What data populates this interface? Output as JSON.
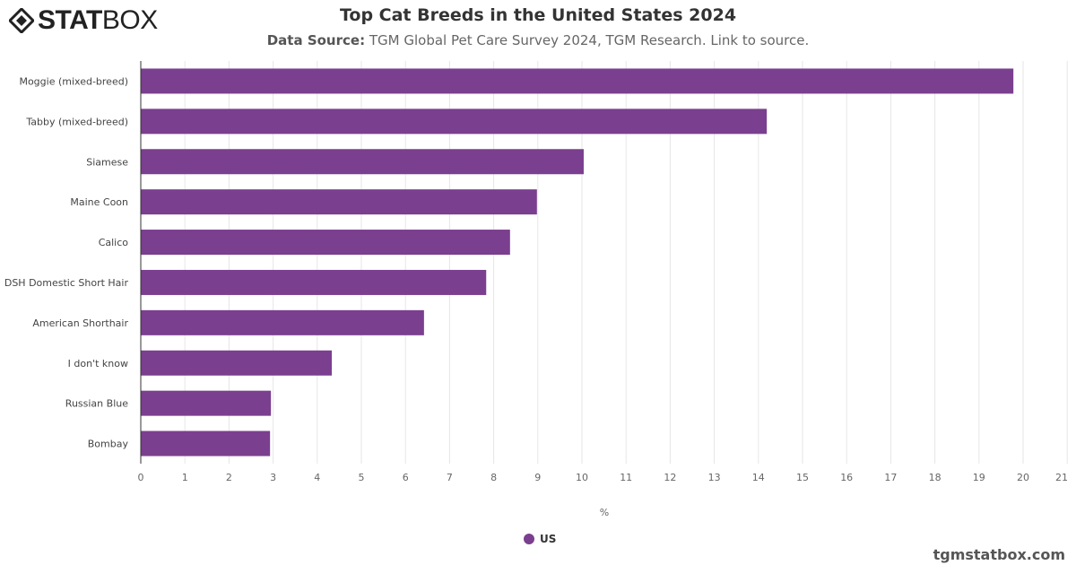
{
  "brand": {
    "logo_bold": "STAT",
    "logo_light": "BOX",
    "credit": "tgmstatbox.com"
  },
  "header": {
    "title": "Top Cat Breeds in the United States 2024",
    "source_label": "Data Source:",
    "source_text": "TGM Global Pet Care Survey 2024, TGM Research. Link to source."
  },
  "chart_data": {
    "type": "bar",
    "orientation": "horizontal",
    "title": "Top Cat Breeds in the United States 2024",
    "categories": [
      "Moggie (mixed-breed)",
      "Tabby (mixed-breed)",
      "Siamese",
      "Maine Coon",
      "Calico",
      "DSH Domestic Short Hair",
      "American Shorthair",
      "I don't know",
      "Russian Blue",
      "Bombay"
    ],
    "series": [
      {
        "name": "US",
        "color": "#7b3f8f",
        "values": [
          19.78,
          14.19,
          10.04,
          8.98,
          8.37,
          7.83,
          6.42,
          4.33,
          2.95,
          2.93
        ]
      }
    ],
    "xlabel": "%",
    "xlim": [
      0,
      21
    ],
    "xticks": [
      "0",
      "1",
      "2",
      "3",
      "4",
      "5",
      "6",
      "7",
      "8",
      "9",
      "10",
      "11",
      "12",
      "13",
      "14",
      "15",
      "16",
      "17",
      "18",
      "19",
      "20",
      "21"
    ],
    "grid": true,
    "legend": "bottom-center"
  }
}
